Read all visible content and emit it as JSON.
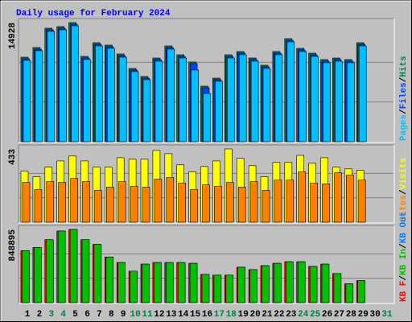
{
  "chart_data": [
    {
      "type": "bar",
      "title": "Daily usage for February 2024",
      "title_color": "#0000ff",
      "ylim": [
        0,
        14928
      ],
      "yticks": [
        14928
      ],
      "draw_reversed": true,
      "series": [
        {
          "name": "Pages",
          "color": "#00c0ff",
          "values": [
            10190,
            11400,
            13820,
            14020,
            14520,
            10290,
            12000,
            11700,
            10590,
            8780,
            7770,
            10090,
            11600,
            10490,
            8980,
            6050,
            7570,
            10490,
            10900,
            10090,
            9180,
            10900,
            12510,
            11300,
            10690,
            9890,
            10090,
            9890,
            12000,
            null,
            null
          ]
        },
        {
          "name": "Files",
          "color": "#0040ff",
          "values": [
            10390,
            11600,
            14020,
            14220,
            14720,
            10490,
            12200,
            11900,
            10790,
            8980,
            7970,
            10290,
            11800,
            10690,
            9780,
            6760,
            7770,
            10690,
            11100,
            10290,
            9380,
            11100,
            12710,
            11500,
            10890,
            10090,
            10290,
            10090,
            12200,
            null,
            null
          ]
        },
        {
          "name": "Hits",
          "color": "#00805c",
          "values": [
            10590,
            11800,
            14222,
            14423,
            14928,
            10691,
            12406,
            12103,
            10994,
            9178,
            8170,
            10489,
            12002,
            10893,
            9985,
            6959,
            7968,
            10893,
            11296,
            10489,
            9582,
            11296,
            12910,
            11700,
            11095,
            10288,
            10489,
            10288,
            12406,
            null,
            null
          ]
        }
      ]
    },
    {
      "type": "bar",
      "ylim": [
        0,
        433
      ],
      "yticks": [
        433
      ],
      "draw_reversed": true,
      "series": [
        {
          "name": "Sites",
          "color": "#ff8000",
          "values": [
            235,
            193,
            240,
            235,
            259,
            240,
            188,
            207,
            240,
            212,
            207,
            254,
            264,
            231,
            193,
            221,
            212,
            235,
            207,
            240,
            188,
            249,
            249,
            297,
            231,
            226,
            292,
            278,
            249,
            null,
            null
          ]
        },
        {
          "name": "Visits",
          "color": "#ffff00",
          "values": [
            301,
            268,
            325,
            362,
            391,
            362,
            325,
            325,
            381,
            372,
            372,
            424,
            405,
            339,
            297,
            329,
            362,
            433,
            377,
            334,
            268,
            353,
            353,
            395,
            348,
            381,
            325,
            315,
            306,
            null,
            null
          ]
        }
      ]
    },
    {
      "type": "bar",
      "ylim": [
        0,
        848895
      ],
      "yticks": [
        848895
      ],
      "draw_reversed": false,
      "categories": [
        "1",
        "2",
        "3",
        "4",
        "5",
        "6",
        "7",
        "8",
        "9",
        "10",
        "11",
        "12",
        "13",
        "14",
        "15",
        "16",
        "17",
        "18",
        "19",
        "20",
        "21",
        "22",
        "23",
        "24",
        "25",
        "26",
        "27",
        "28",
        "29",
        "30",
        "31"
      ],
      "category_colors": [
        "#000000",
        "#000000",
        "#008040",
        "#008040",
        "#000000",
        "#000000",
        "#000000",
        "#000000",
        "#000000",
        "#008040",
        "#008040",
        "#000000",
        "#000000",
        "#000000",
        "#000000",
        "#000000",
        "#008040",
        "#008040",
        "#000000",
        "#000000",
        "#000000",
        "#000000",
        "#000000",
        "#008040",
        "#008040",
        "#000000",
        "#000000",
        "#000000",
        "#000000",
        "#000000",
        "#008040"
      ],
      "series": [
        {
          "name": "KB F",
          "color": "#ff0000",
          "values": [
            602448,
            638960,
            730240,
            830648,
            848895,
            730240,
            675472,
            529424,
            465528,
            365120,
            447272,
            465528,
            465528,
            465528,
            456400,
            328608,
            319480,
            319480,
            410760,
            383376,
            429016,
            456400,
            474656,
            474656,
            419888,
            447272,
            337736,
            219072,
            255584,
            null,
            null
          ]
        },
        {
          "name": "KB In",
          "color": "#00c000",
          "values": [
            602448,
            638960,
            730240,
            830648,
            848895,
            730240,
            675472,
            529424,
            465528,
            365120,
            447272,
            465528,
            465528,
            465528,
            456400,
            328608,
            319480,
            319480,
            410760,
            383376,
            429016,
            456400,
            474656,
            474656,
            419888,
            447272,
            337736,
            219072,
            255584,
            null,
            null
          ]
        },
        {
          "name": "KB Out",
          "color": "#0080ff",
          "values": [
            null,
            null,
            null,
            null,
            null,
            null,
            null,
            null,
            null,
            null,
            null,
            null,
            null,
            null,
            null,
            null,
            null,
            null,
            null,
            null,
            null,
            null,
            null,
            null,
            null,
            null,
            null,
            null,
            null,
            null,
            null
          ]
        }
      ]
    }
  ]
}
